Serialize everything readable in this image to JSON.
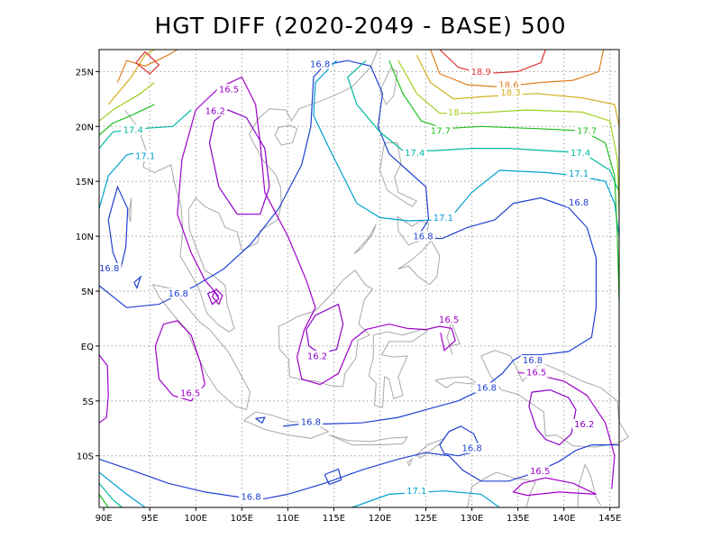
{
  "title": "HGT DIFF (2020-2049 - BASE) 500",
  "x_ticks": [
    "90E",
    "95E",
    "100E",
    "105E",
    "110E",
    "115E",
    "120E",
    "125E",
    "130E",
    "135E",
    "140E",
    "145E"
  ],
  "y_ticks": [
    "25N",
    "20N",
    "15N",
    "10N",
    "5N",
    "EQ",
    "5S",
    "10S"
  ],
  "colors": {
    "c16_2": "#8a00c8",
    "c16_5": "#a000c8",
    "c16_8": "#2040d0",
    "c17_1": "#00a0d0",
    "c17_4": "#00b8a0",
    "c17_7": "#20c020",
    "c18": "#a0d020",
    "c18_3": "#d0b020",
    "c18_6": "#e08020",
    "c18_9": "#e03030",
    "land": "#a8a8a8",
    "grid": "#a0a0a0"
  },
  "contour_labels": [
    {
      "text": "16.8",
      "lon": 113.5,
      "lat": 25.5,
      "color": "c16_8"
    },
    {
      "text": "18.9",
      "lon": 131.0,
      "lat": 24.8,
      "color": "c18_9"
    },
    {
      "text": "18.6",
      "lon": 134.0,
      "lat": 23.6,
      "color": "c18_6"
    },
    {
      "text": "18.3",
      "lon": 134.2,
      "lat": 22.9,
      "color": "c18_3"
    },
    {
      "text": "16.5",
      "lon": 103.6,
      "lat": 23.2,
      "color": "c16_5"
    },
    {
      "text": "16.2",
      "lon": 102.1,
      "lat": 21.2,
      "color": "c16_2"
    },
    {
      "text": "18",
      "lon": 128.0,
      "lat": 21.1,
      "color": "c18"
    },
    {
      "text": "17.4",
      "lon": 93.2,
      "lat": 19.5,
      "color": "c17_4"
    },
    {
      "text": "17.7",
      "lon": 126.6,
      "lat": 19.4,
      "color": "c17_7"
    },
    {
      "text": "17.7",
      "lon": 142.5,
      "lat": 19.4,
      "color": "c17_7"
    },
    {
      "text": "17.4",
      "lon": 123.8,
      "lat": 17.4,
      "color": "c17_4"
    },
    {
      "text": "17.4",
      "lon": 141.8,
      "lat": 17.4,
      "color": "c17_4"
    },
    {
      "text": "17.1",
      "lon": 94.5,
      "lat": 17.1,
      "color": "c17_1"
    },
    {
      "text": "17.1",
      "lon": 141.6,
      "lat": 15.5,
      "color": "c17_1"
    },
    {
      "text": "16.8",
      "lon": 141.6,
      "lat": 12.9,
      "color": "c16_8"
    },
    {
      "text": "17.1",
      "lon": 126.9,
      "lat": 11.5,
      "color": "c17_1"
    },
    {
      "text": "16.8",
      "lon": 124.7,
      "lat": 9.8,
      "color": "c16_8"
    },
    {
      "text": "16.8",
      "lon": 90.6,
      "lat": 6.9,
      "color": "c16_8"
    },
    {
      "text": "16.8",
      "lon": 98.1,
      "lat": 4.6,
      "color": "c16_8"
    },
    {
      "text": "16.5",
      "lon": 127.5,
      "lat": 2.2,
      "color": "c16_5"
    },
    {
      "text": "16.2",
      "lon": 113.2,
      "lat": -1.1,
      "color": "c16_2"
    },
    {
      "text": "16.8",
      "lon": 136.6,
      "lat": -1.5,
      "color": "c16_8"
    },
    {
      "text": "16.5",
      "lon": 137.0,
      "lat": -2.6,
      "color": "c16_5"
    },
    {
      "text": "16.8",
      "lon": 131.6,
      "lat": -4.0,
      "color": "c16_8"
    },
    {
      "text": "16.5",
      "lon": 99.4,
      "lat": -4.5,
      "color": "c16_5"
    },
    {
      "text": "16.2",
      "lon": 142.2,
      "lat": -7.3,
      "color": "c16_2"
    },
    {
      "text": "16.8",
      "lon": 112.5,
      "lat": -7.1,
      "color": "c16_8"
    },
    {
      "text": "16.8",
      "lon": 130.0,
      "lat": -9.5,
      "color": "c16_8"
    },
    {
      "text": "16.5",
      "lon": 137.4,
      "lat": -11.6,
      "color": "c16_5"
    },
    {
      "text": "17.1",
      "lon": 124.0,
      "lat": -13.4,
      "color": "c17_1"
    },
    {
      "text": "16.8",
      "lon": 106.0,
      "lat": -13.9,
      "color": "c16_8"
    }
  ]
}
